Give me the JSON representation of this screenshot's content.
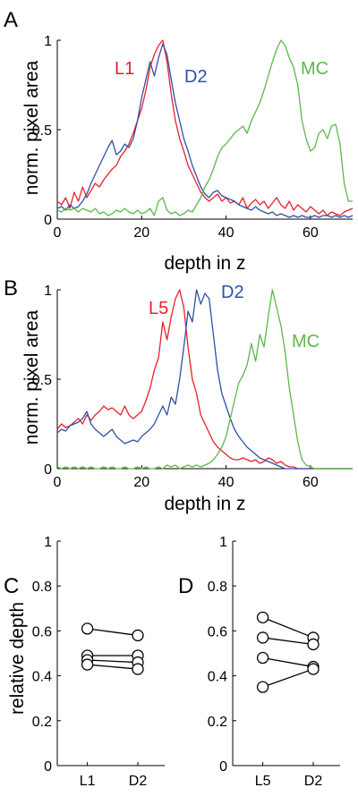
{
  "colors": {
    "red": "#e8202a",
    "blue": "#3050a8",
    "green": "#5cb84a",
    "marker": "#000000"
  },
  "chart_data": [
    {
      "panel": "A",
      "type": "line",
      "xlabel": "depth in z",
      "ylabel": "norm. pixel area",
      "xlim": [
        0,
        70
      ],
      "ylim": [
        0,
        1
      ],
      "xticks": [
        "0",
        "20",
        "40",
        "60"
      ],
      "yticks": [
        "0",
        "0.5",
        "1"
      ],
      "series": [
        {
          "name": "L1",
          "color": "#e8202a",
          "x": [
            0,
            1,
            2,
            3,
            4,
            5,
            6,
            7,
            8,
            9,
            10,
            11,
            12,
            13,
            14,
            15,
            16,
            17,
            18,
            19,
            20,
            21,
            22,
            23,
            24,
            25,
            26,
            27,
            28,
            29,
            30,
            31,
            32,
            33,
            34,
            35,
            36,
            37,
            38,
            39,
            40,
            41,
            42,
            43,
            44,
            45,
            46,
            47,
            48,
            49,
            50,
            51,
            52,
            53,
            54,
            55,
            56,
            57,
            58,
            59,
            60,
            61,
            62,
            63,
            64,
            65,
            66,
            67,
            68,
            69,
            70
          ],
          "y": [
            0.1,
            0.08,
            0.12,
            0.06,
            0.15,
            0.1,
            0.18,
            0.12,
            0.16,
            0.2,
            0.18,
            0.22,
            0.25,
            0.28,
            0.3,
            0.35,
            0.38,
            0.42,
            0.48,
            0.55,
            0.62,
            0.72,
            0.85,
            0.92,
            0.97,
            1.0,
            0.88,
            0.7,
            0.55,
            0.45,
            0.38,
            0.3,
            0.25,
            0.2,
            0.15,
            0.12,
            0.1,
            0.12,
            0.14,
            0.1,
            0.12,
            0.09,
            0.1,
            0.08,
            0.12,
            0.06,
            0.09,
            0.11,
            0.08,
            0.1,
            0.06,
            0.09,
            0.12,
            0.08,
            0.06,
            0.1,
            0.05,
            0.08,
            0.06,
            0.04,
            0.07,
            0.05,
            0.03,
            0.05,
            0.02,
            0.04,
            0.03,
            0.02,
            0.04,
            0.05,
            0.06
          ]
        },
        {
          "name": "D2",
          "color": "#3050a8",
          "x": [
            0,
            1,
            2,
            3,
            4,
            5,
            6,
            7,
            8,
            9,
            10,
            11,
            12,
            13,
            14,
            15,
            16,
            17,
            18,
            19,
            20,
            21,
            22,
            23,
            24,
            25,
            26,
            27,
            28,
            29,
            30,
            31,
            32,
            33,
            34,
            35,
            36,
            37,
            38,
            39,
            40,
            41,
            42,
            43,
            44,
            45,
            46,
            47,
            48,
            49,
            50,
            51,
            52,
            53,
            54,
            55,
            56,
            57,
            58,
            59,
            60,
            61,
            62,
            63,
            64,
            65,
            66,
            67,
            68,
            69,
            70
          ],
          "y": [
            0.06,
            0.07,
            0.05,
            0.08,
            0.06,
            0.07,
            0.1,
            0.14,
            0.2,
            0.25,
            0.3,
            0.35,
            0.4,
            0.44,
            0.36,
            0.38,
            0.42,
            0.4,
            0.45,
            0.55,
            0.68,
            0.78,
            0.88,
            0.8,
            0.9,
            0.98,
            0.92,
            0.78,
            0.65,
            0.55,
            0.45,
            0.38,
            0.3,
            0.24,
            0.18,
            0.14,
            0.12,
            0.15,
            0.16,
            0.13,
            0.12,
            0.11,
            0.1,
            0.08,
            0.07,
            0.06,
            0.05,
            0.07,
            0.05,
            0.04,
            0.03,
            0.04,
            0.02,
            0.03,
            0.02,
            0.01,
            0.02,
            0.01,
            0.02,
            0.01,
            0.01,
            0.02,
            0.01,
            0.02,
            0.02,
            0.01,
            0.02,
            0.01,
            0.02,
            0.01,
            0.02
          ]
        },
        {
          "name": "MC",
          "color": "#5cb84a",
          "x": [
            0,
            1,
            2,
            3,
            4,
            5,
            6,
            7,
            8,
            9,
            10,
            11,
            12,
            13,
            14,
            15,
            16,
            17,
            18,
            19,
            20,
            21,
            22,
            23,
            24,
            25,
            26,
            27,
            28,
            29,
            30,
            31,
            32,
            33,
            34,
            35,
            36,
            37,
            38,
            39,
            40,
            41,
            42,
            43,
            44,
            45,
            46,
            47,
            48,
            49,
            50,
            51,
            52,
            53,
            54,
            55,
            56,
            57,
            58,
            59,
            60,
            61,
            62,
            63,
            64,
            65,
            66,
            67,
            68,
            69,
            70
          ],
          "y": [
            0.05,
            0.04,
            0.06,
            0.05,
            0.06,
            0.04,
            0.06,
            0.05,
            0.04,
            0.06,
            0.03,
            0.04,
            0.02,
            0.03,
            0.05,
            0.04,
            0.06,
            0.04,
            0.03,
            0.05,
            0.03,
            0.04,
            0.06,
            0.02,
            0.1,
            0.12,
            0.05,
            0.03,
            0.04,
            0.02,
            0.03,
            0.05,
            0.04,
            0.08,
            0.12,
            0.18,
            0.22,
            0.28,
            0.35,
            0.4,
            0.42,
            0.45,
            0.48,
            0.5,
            0.52,
            0.48,
            0.55,
            0.6,
            0.65,
            0.72,
            0.8,
            0.88,
            0.95,
            1.0,
            0.97,
            0.9,
            0.85,
            0.75,
            0.55,
            0.45,
            0.38,
            0.4,
            0.48,
            0.5,
            0.45,
            0.52,
            0.53,
            0.42,
            0.2,
            0.1,
            0.1
          ]
        }
      ]
    },
    {
      "panel": "B",
      "type": "line",
      "xlabel": "depth in z",
      "ylabel": "norm. pixel area",
      "xlim": [
        0,
        70
      ],
      "ylim": [
        0,
        1
      ],
      "xticks": [
        "0",
        "20",
        "40",
        "60"
      ],
      "yticks": [
        "0",
        "0.5",
        "1"
      ],
      "series": [
        {
          "name": "L5",
          "color": "#e8202a",
          "x": [
            0,
            1,
            2,
            3,
            4,
            5,
            6,
            7,
            8,
            9,
            10,
            11,
            12,
            13,
            14,
            15,
            16,
            17,
            18,
            19,
            20,
            21,
            22,
            23,
            24,
            25,
            26,
            27,
            28,
            29,
            30,
            31,
            32,
            33,
            34,
            35,
            36,
            37,
            38,
            39,
            40,
            41,
            42,
            43,
            44,
            45,
            46,
            47,
            48,
            49,
            50,
            51,
            52,
            53,
            54,
            55,
            56,
            57,
            58,
            59,
            60,
            61,
            62,
            63,
            64,
            65,
            66,
            67,
            68,
            69,
            70
          ],
          "y": [
            0.22,
            0.25,
            0.23,
            0.24,
            0.26,
            0.28,
            0.25,
            0.3,
            0.27,
            0.3,
            0.32,
            0.35,
            0.33,
            0.34,
            0.32,
            0.3,
            0.35,
            0.3,
            0.28,
            0.3,
            0.32,
            0.38,
            0.45,
            0.55,
            0.62,
            0.82,
            0.72,
            0.85,
            0.95,
            1.0,
            0.9,
            0.68,
            0.5,
            0.42,
            0.3,
            0.25,
            0.2,
            0.15,
            0.12,
            0.1,
            0.08,
            0.06,
            0.05,
            0.05,
            0.06,
            0.05,
            0.04,
            0.05,
            0.03,
            0.04,
            0.06,
            0.05,
            0.03,
            0.04,
            0.02,
            0.01,
            0.01,
            0.0,
            0.0,
            0.0,
            0.0,
            0.0,
            0.0,
            0.0,
            0.0,
            0.0,
            0.0,
            0.0,
            0.0,
            0.0,
            0.0
          ]
        },
        {
          "name": "D2",
          "color": "#3050a8",
          "x": [
            0,
            1,
            2,
            3,
            4,
            5,
            6,
            7,
            8,
            9,
            10,
            11,
            12,
            13,
            14,
            15,
            16,
            17,
            18,
            19,
            20,
            21,
            22,
            23,
            24,
            25,
            26,
            27,
            28,
            29,
            30,
            31,
            32,
            33,
            34,
            35,
            36,
            37,
            38,
            39,
            40,
            41,
            42,
            43,
            44,
            45,
            46,
            47,
            48,
            49,
            50,
            51,
            52,
            53,
            54,
            55,
            56,
            57,
            58,
            59,
            60,
            61,
            62,
            63,
            64,
            65,
            66,
            67,
            68,
            69,
            70
          ],
          "y": [
            0.2,
            0.22,
            0.21,
            0.24,
            0.25,
            0.26,
            0.28,
            0.32,
            0.25,
            0.22,
            0.2,
            0.18,
            0.2,
            0.22,
            0.18,
            0.16,
            0.14,
            0.15,
            0.16,
            0.15,
            0.18,
            0.2,
            0.22,
            0.25,
            0.3,
            0.35,
            0.3,
            0.4,
            0.36,
            0.5,
            0.68,
            0.88,
            0.82,
            1.0,
            0.92,
            0.98,
            0.95,
            0.75,
            0.55,
            0.42,
            0.35,
            0.28,
            0.22,
            0.18,
            0.15,
            0.12,
            0.1,
            0.08,
            0.06,
            0.05,
            0.04,
            0.03,
            0.02,
            0.01,
            0.0,
            0.0,
            0.0,
            0.0,
            0.0,
            0.0,
            0.0,
            0.0,
            0.0,
            0.0,
            0.0,
            0.0,
            0.0,
            0.0,
            0.0,
            0.0,
            0.0
          ]
        },
        {
          "name": "MC",
          "color": "#5cb84a",
          "x": [
            0,
            1,
            2,
            3,
            4,
            5,
            6,
            7,
            8,
            9,
            10,
            11,
            12,
            13,
            14,
            15,
            16,
            17,
            18,
            19,
            20,
            21,
            22,
            23,
            24,
            25,
            26,
            27,
            28,
            29,
            30,
            31,
            32,
            33,
            34,
            35,
            36,
            37,
            38,
            39,
            40,
            41,
            42,
            43,
            44,
            45,
            46,
            47,
            48,
            49,
            50,
            51,
            52,
            53,
            54,
            55,
            56,
            57,
            58,
            59,
            60,
            61,
            62,
            63,
            64,
            65,
            66,
            67,
            68,
            69,
            70
          ],
          "y": [
            0.01,
            0.0,
            0.01,
            0.0,
            0.01,
            0.0,
            0.01,
            0.0,
            0.01,
            0.0,
            0.0,
            0.01,
            0.0,
            0.01,
            0.0,
            0.0,
            0.01,
            0.0,
            0.0,
            0.01,
            0.0,
            0.01,
            0.0,
            0.0,
            0.01,
            0.0,
            0.02,
            0.01,
            0.02,
            0.0,
            0.01,
            0.02,
            0.01,
            0.02,
            0.01,
            0.02,
            0.03,
            0.05,
            0.08,
            0.12,
            0.18,
            0.28,
            0.38,
            0.48,
            0.52,
            0.58,
            0.7,
            0.6,
            0.75,
            0.68,
            0.85,
            1.0,
            0.9,
            0.8,
            0.65,
            0.45,
            0.3,
            0.15,
            0.05,
            0.02,
            0.01,
            0.0,
            0.0,
            0.0,
            0.0,
            0.0,
            0.0,
            0.0,
            0.0,
            0.0,
            0.0
          ]
        }
      ]
    },
    {
      "panel": "C",
      "type": "scatter",
      "xlabel": "",
      "ylabel": "relative depth",
      "ylim": [
        0,
        1
      ],
      "yticks": [
        "0",
        "0.2",
        "0.4",
        "0.6",
        "0.8",
        "1"
      ],
      "categories": [
        "L1",
        "D2"
      ],
      "pairs": [
        [
          0.61,
          0.58
        ],
        [
          0.49,
          0.49
        ],
        [
          0.47,
          0.46
        ],
        [
          0.45,
          0.43
        ]
      ]
    },
    {
      "panel": "D",
      "type": "scatter",
      "xlabel": "",
      "ylabel": "",
      "ylim": [
        0,
        1
      ],
      "yticks": [
        "0",
        "0.2",
        "0.4",
        "0.6",
        "0.8",
        "1"
      ],
      "categories": [
        "L5",
        "D2"
      ],
      "pairs": [
        [
          0.66,
          0.57
        ],
        [
          0.57,
          0.54
        ],
        [
          0.48,
          0.44
        ],
        [
          0.35,
          0.43
        ]
      ]
    }
  ]
}
